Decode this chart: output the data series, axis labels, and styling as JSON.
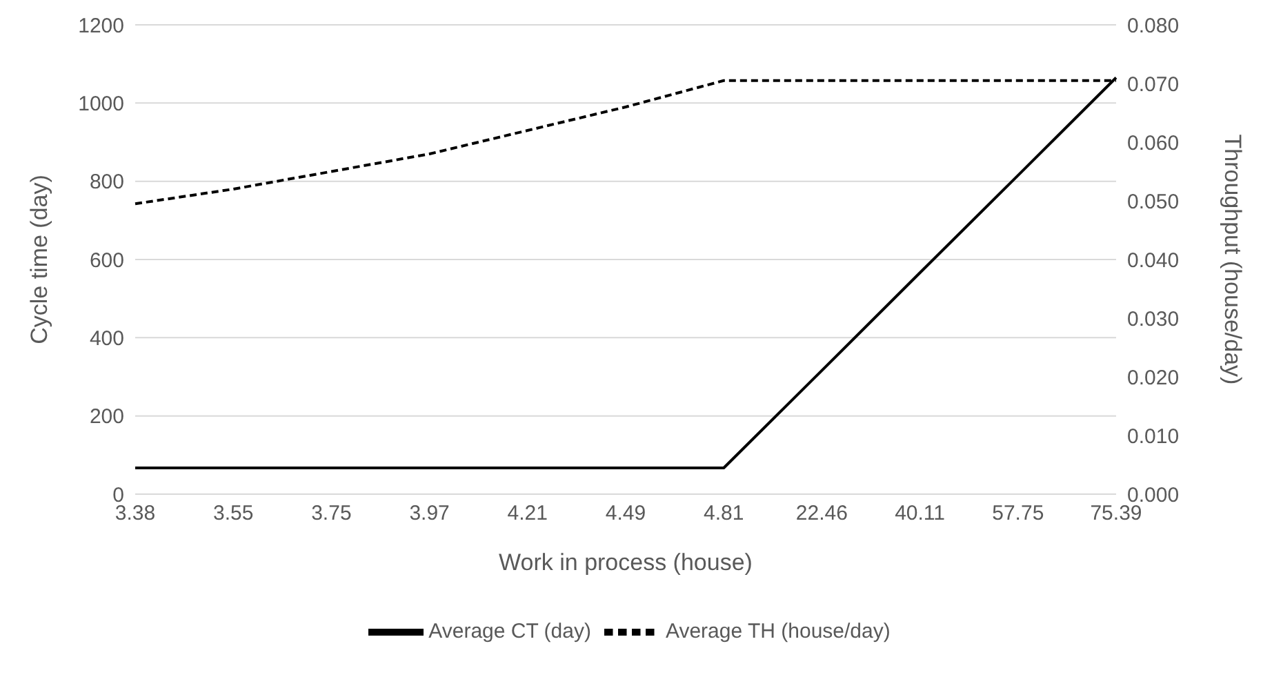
{
  "chart_data": {
    "type": "line",
    "xlabel": "Work in process (house)",
    "ylabel": "Cycle time (day)",
    "y2label": "Throughput (house/day)",
    "categories": [
      "3.38",
      "3.55",
      "3.75",
      "3.97",
      "4.21",
      "4.49",
      "4.81",
      "22.46",
      "40.11",
      "57.75",
      "75.39"
    ],
    "series": [
      {
        "name": "Average CT (day)",
        "color": "#000000",
        "line_style": "solid",
        "values": [
          67,
          67,
          67,
          67,
          67,
          67,
          67,
          316,
          566,
          815,
          1065
        ]
      },
      {
        "name": "Average TH (house/day)",
        "color": "#000000",
        "line_style": "dashed",
        "axis": "y2",
        "values": [
          0.0495,
          0.052,
          0.055,
          0.058,
          0.062,
          0.066,
          0.0705,
          0.0705,
          0.0705,
          0.0705,
          0.0705
        ]
      }
    ],
    "ylim": [
      0,
      1200
    ],
    "yticks": [
      0,
      200,
      400,
      600,
      800,
      1000,
      1200
    ],
    "y2lim": [
      0,
      0.08
    ],
    "y2ticks": [
      {
        "value": 0,
        "label": "0.000"
      },
      {
        "value": 0.01,
        "label": "0.010"
      },
      {
        "value": 0.02,
        "label": "0.020"
      },
      {
        "value": 0.03,
        "label": "0.030"
      },
      {
        "value": 0.04,
        "label": "0.040"
      },
      {
        "value": 0.05,
        "label": "0.050"
      },
      {
        "value": 0.06,
        "label": "0.060"
      },
      {
        "value": 0.07,
        "label": "0.070"
      },
      {
        "value": 0.08,
        "label": "0.080"
      }
    ],
    "grid": "y",
    "legend": "bottom"
  }
}
